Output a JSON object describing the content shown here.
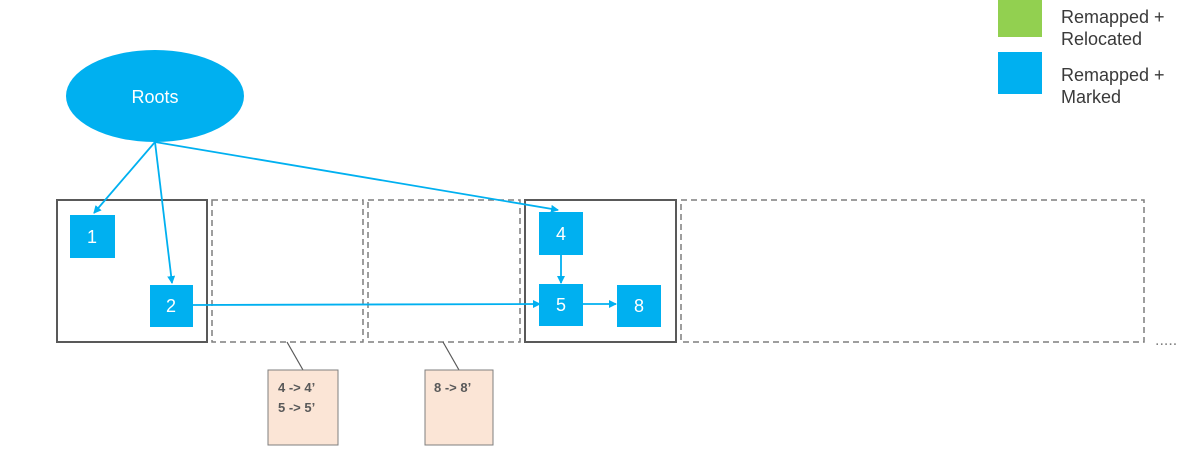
{
  "roots_label": "Roots",
  "objects": {
    "o1": "1",
    "o2": "2",
    "o4": "4",
    "o5": "5",
    "o8": "8"
  },
  "forwarding_tables": {
    "t1": {
      "line1": "4 -> 4’",
      "line2": "5 -> 5’"
    },
    "t2": {
      "line1": "8 -> 8’"
    }
  },
  "ellipsis": ".....",
  "legend": {
    "relocated": {
      "line1": "Remapped +",
      "line2": "Relocated",
      "color": "#92d050"
    },
    "marked": {
      "line1": "Remapped +",
      "line2": "Marked",
      "color": "#00b0f0"
    }
  },
  "colors": {
    "object_fill": "#00b0f0",
    "edge": "#00b0f0",
    "page_solid": "#595959",
    "page_dashed": "#7f7f7f",
    "table_fill": "#fbe5d6",
    "table_border": "#7f7f7f"
  }
}
